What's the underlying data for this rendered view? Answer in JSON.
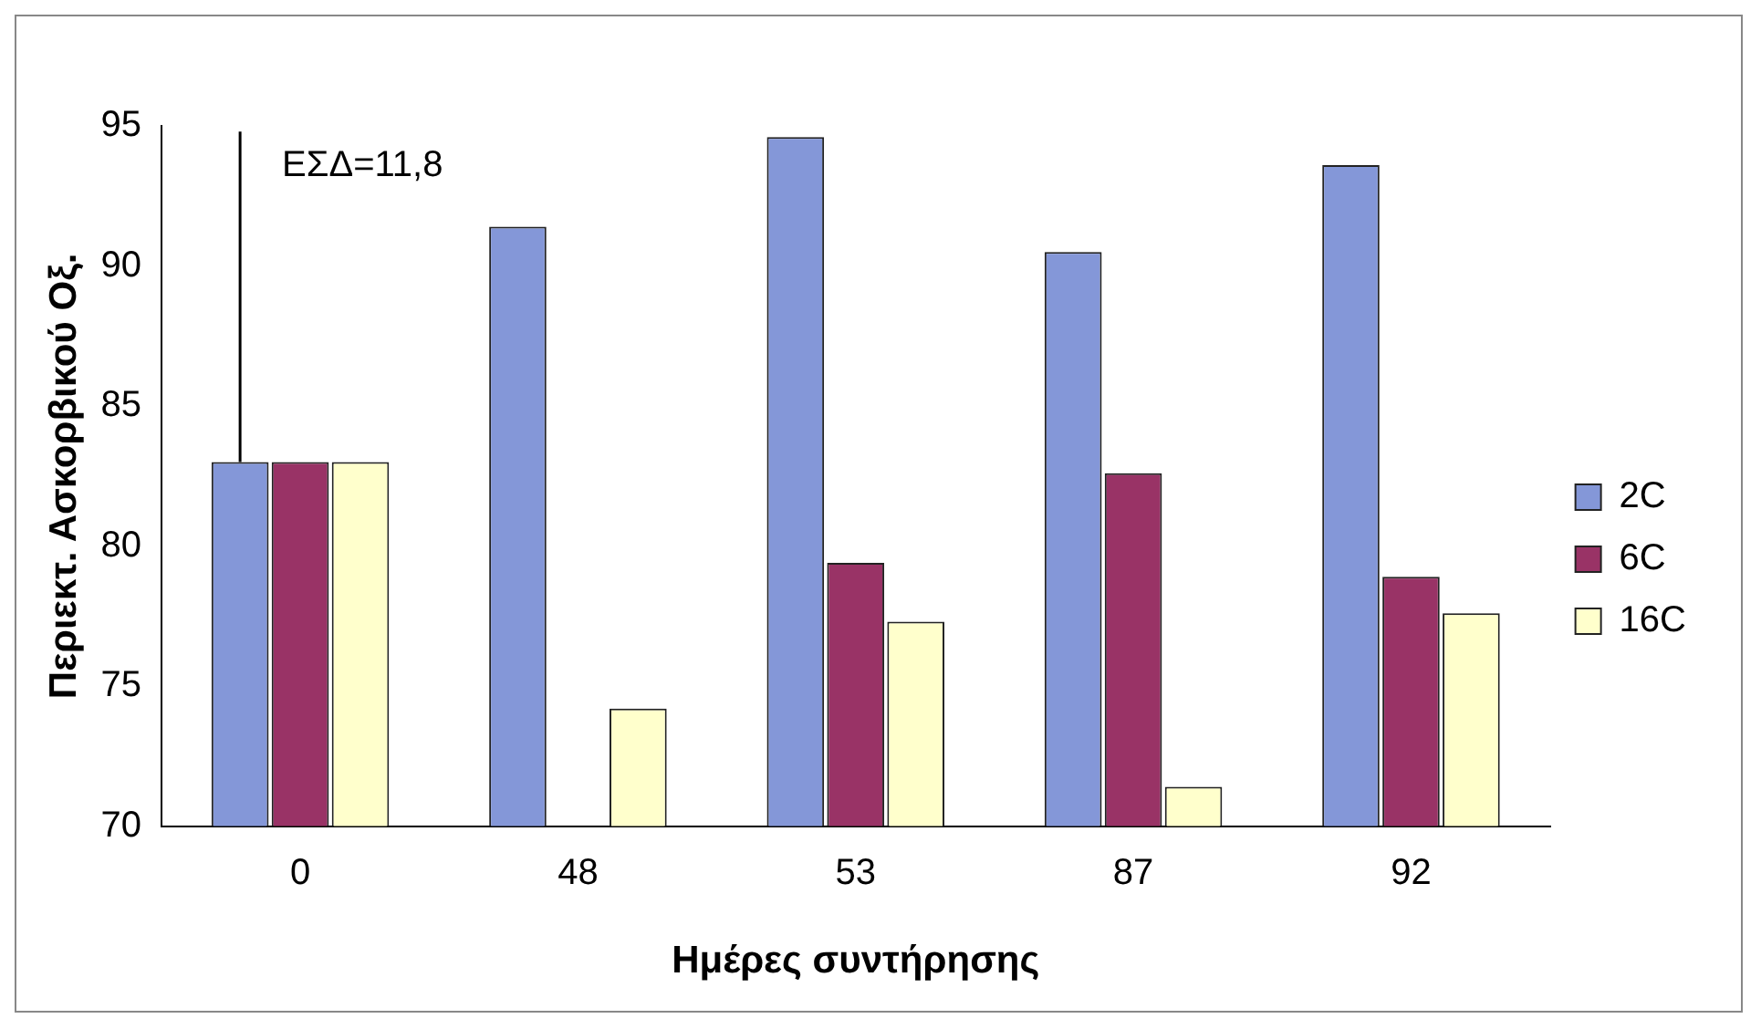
{
  "chart_data": {
    "type": "bar",
    "ylabel": "Περιεκτ. Ασκορβικού Οξ.",
    "xlabel": "Ημέρες συντήρησης",
    "categories": [
      "0",
      "48",
      "53",
      "87",
      "92"
    ],
    "series": [
      {
        "name": "2C",
        "color": "#8497d8",
        "values": [
          83,
          91.4,
          94.6,
          90.5,
          93.6
        ],
        "errors": [
          [
            83,
            94.8
          ],
          null,
          null,
          null,
          null
        ]
      },
      {
        "name": "6C",
        "color": "#993366",
        "values": [
          83,
          null,
          79.4,
          82.6,
          78.9
        ]
      },
      {
        "name": "16C",
        "color": "#ffffcc",
        "values": [
          83,
          74.2,
          77.3,
          71.4,
          77.6
        ]
      }
    ],
    "annotations": [
      "ΕΣΔ=11,8"
    ],
    "ylim": [
      70,
      95
    ],
    "yticks": [
      70,
      75,
      80,
      85,
      90,
      95
    ],
    "grid": false,
    "legend": "right"
  }
}
